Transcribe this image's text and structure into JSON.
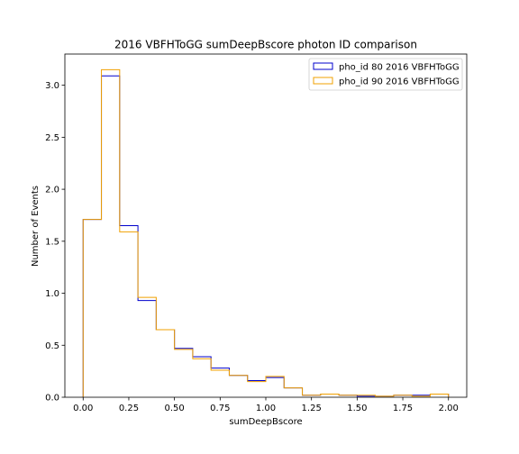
{
  "chart_data": {
    "type": "histogram-step",
    "title": "2016 VBFHToGG sumDeepBscore photon ID comparison",
    "xlabel": "sumDeepBscore",
    "ylabel": "Number of Events",
    "xlim": [
      -0.1,
      2.1
    ],
    "ylim": [
      0,
      3.3
    ],
    "xticks": [
      "0.00",
      "0.25",
      "0.50",
      "0.75",
      "1.00",
      "1.25",
      "1.50",
      "1.75",
      "2.00"
    ],
    "yticks": [
      "0.0",
      "0.5",
      "1.0",
      "1.5",
      "2.0",
      "2.5",
      "3.0"
    ],
    "legend_position": "top-right",
    "bin_edges": [
      0.0,
      0.1,
      0.2,
      0.3,
      0.4,
      0.5,
      0.6,
      0.7,
      0.8,
      0.9,
      1.0,
      1.1,
      1.2,
      1.3,
      1.4,
      1.5,
      1.6,
      1.7,
      1.8,
      1.9,
      2.0
    ],
    "series": [
      {
        "name": "pho_id 80 2016 VBFHToGG",
        "color": "#0000cc",
        "values": [
          1.71,
          3.09,
          1.65,
          0.93,
          0.65,
          0.47,
          0.39,
          0.28,
          0.21,
          0.16,
          0.19,
          0.09,
          0.02,
          0.03,
          0.02,
          0.01,
          0.01,
          0.02,
          0.02,
          0.03
        ]
      },
      {
        "name": "pho_id 90 2016 VBFHToGG",
        "color": "#f0a000",
        "values": [
          1.71,
          3.15,
          1.59,
          0.96,
          0.65,
          0.46,
          0.37,
          0.26,
          0.21,
          0.15,
          0.2,
          0.09,
          0.02,
          0.03,
          0.02,
          0.02,
          0.01,
          0.02,
          0.01,
          0.03
        ]
      }
    ]
  }
}
